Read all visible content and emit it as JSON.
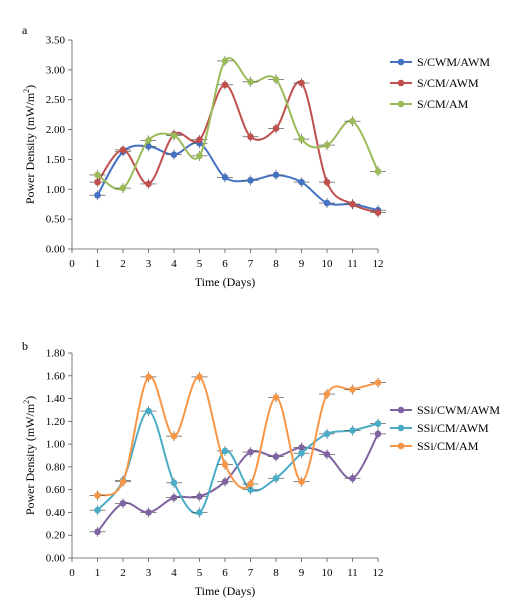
{
  "chart_data": [
    {
      "type": "line",
      "panel_label": "a",
      "xlabel": "Time (Days)",
      "ylabel": "Power Density (mW/m²)",
      "ylabel_main": "Power Density (mW/m",
      "ylabel_sup": "2",
      "ylabel_close": ")",
      "xlim": [
        0,
        12
      ],
      "ylim": [
        0,
        3.5
      ],
      "x_ticks": [
        "0",
        "1",
        "2",
        "3",
        "4",
        "5",
        "6",
        "7",
        "8",
        "9",
        "10",
        "11",
        "12"
      ],
      "y_ticks": [
        "0.00",
        "0.50",
        "1.00",
        "1.50",
        "2.00",
        "2.50",
        "3.00",
        "3.50"
      ],
      "legend_position": "right",
      "grid": false,
      "series": [
        {
          "name": "S/CWM/AWM",
          "color": "#4472C4",
          "x": [
            1,
            2,
            3,
            4,
            5,
            6,
            7,
            8,
            9,
            10,
            11,
            12
          ],
          "values": [
            0.9,
            1.63,
            1.72,
            1.58,
            1.77,
            1.2,
            1.15,
            1.24,
            1.12,
            0.77,
            0.75,
            0.65
          ]
        },
        {
          "name": "S/CM/AWM",
          "color": "#C0504D",
          "x": [
            1,
            2,
            3,
            4,
            5,
            6,
            7,
            8,
            9,
            10,
            11,
            12
          ],
          "values": [
            1.12,
            1.66,
            1.09,
            1.92,
            1.83,
            2.75,
            1.88,
            2.02,
            2.78,
            1.12,
            0.75,
            0.61
          ]
        },
        {
          "name": "S/CM/AM",
          "color": "#9BBB59",
          "x": [
            1,
            2,
            3,
            4,
            5,
            6,
            7,
            8,
            9,
            10,
            11,
            12
          ],
          "values": [
            1.24,
            1.02,
            1.82,
            1.9,
            1.56,
            3.15,
            2.8,
            2.84,
            1.84,
            1.74,
            2.14,
            1.3
          ]
        }
      ]
    },
    {
      "type": "line",
      "panel_label": "b",
      "xlabel": "Time (Days)",
      "ylabel": "Power Density (mW/m²)",
      "ylabel_main": "Power Density (mW/m",
      "ylabel_sup": "2",
      "ylabel_close": ")",
      "xlim": [
        0,
        12
      ],
      "ylim": [
        0,
        1.8
      ],
      "x_ticks": [
        "0",
        "1",
        "2",
        "3",
        "4",
        "5",
        "6",
        "7",
        "8",
        "9",
        "10",
        "11",
        "12"
      ],
      "y_ticks": [
        "0.00",
        "0.20",
        "0.40",
        "0.60",
        "0.80",
        "1.00",
        "1.20",
        "1.40",
        "1.60",
        "1.80"
      ],
      "legend_position": "right",
      "grid": false,
      "series": [
        {
          "name": "SSi/CWM/AWM",
          "color": "#8064A2",
          "x": [
            1,
            2,
            3,
            4,
            5,
            6,
            7,
            8,
            9,
            10,
            11,
            12
          ],
          "values": [
            0.23,
            0.48,
            0.4,
            0.53,
            0.54,
            0.67,
            0.93,
            0.89,
            0.97,
            0.91,
            0.7,
            1.09
          ]
        },
        {
          "name": "SSi/CM/AWM",
          "color": "#4BACC6",
          "x": [
            1,
            2,
            3,
            4,
            5,
            6,
            7,
            8,
            9,
            10,
            11,
            12
          ],
          "values": [
            0.42,
            0.68,
            1.29,
            0.66,
            0.4,
            0.94,
            0.6,
            0.7,
            0.92,
            1.09,
            1.12,
            1.18
          ]
        },
        {
          "name": "SSi/CM/AM",
          "color": "#F79646",
          "x": [
            1,
            2,
            3,
            4,
            5,
            6,
            7,
            8,
            9,
            10,
            11,
            12
          ],
          "values": [
            0.55,
            0.67,
            1.59,
            1.07,
            1.59,
            0.82,
            0.65,
            1.41,
            0.67,
            1.44,
            1.48,
            1.54
          ]
        }
      ]
    }
  ]
}
